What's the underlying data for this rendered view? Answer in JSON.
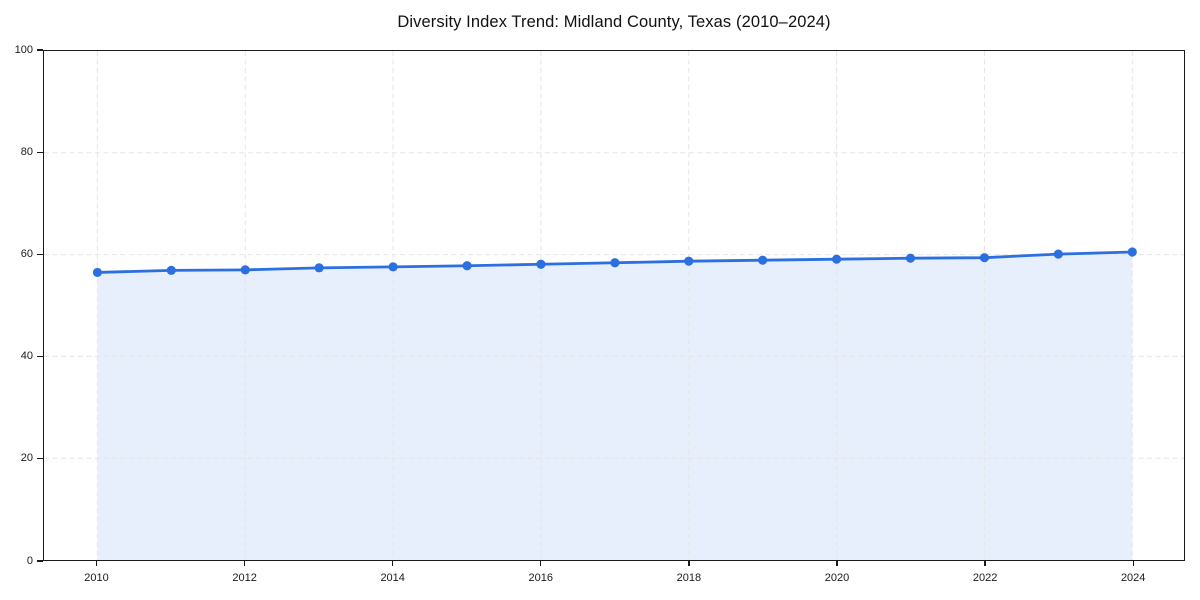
{
  "chart_data": {
    "type": "area",
    "title": "Diversity Index Trend: Midland County, Texas (2010–2024)",
    "x": [
      2010,
      2011,
      2012,
      2013,
      2014,
      2015,
      2016,
      2017,
      2018,
      2019,
      2020,
      2021,
      2022,
      2023,
      2024
    ],
    "series": [
      {
        "name": "Diversity Index",
        "values": [
          56.5,
          56.9,
          57.0,
          57.4,
          57.6,
          57.8,
          58.1,
          58.4,
          58.7,
          58.9,
          59.1,
          59.3,
          59.4,
          60.1,
          60.5
        ]
      }
    ],
    "xlabel": "",
    "ylabel": "",
    "ylim": [
      0,
      100
    ],
    "yticks": [
      0,
      20,
      40,
      60,
      80,
      100
    ],
    "xticks": [
      2010,
      2012,
      2014,
      2016,
      2018,
      2020,
      2022,
      2024
    ],
    "grid": "dashed",
    "legend": "none",
    "line_color": "#2b6fe0",
    "fill_color": "#e7eefc",
    "marker": "circle"
  }
}
